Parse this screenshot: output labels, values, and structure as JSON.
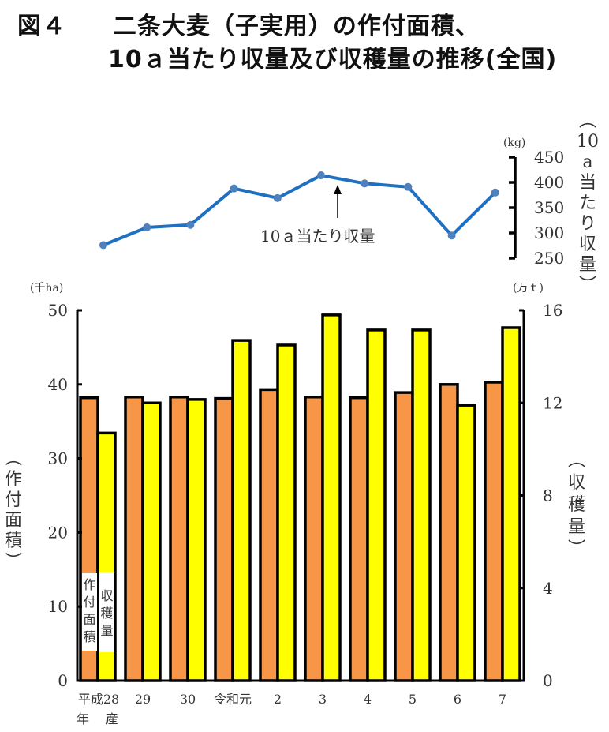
{
  "title": {
    "line1_fig": "図４",
    "line1_text": "二条大麦（子実用）の作付面積、",
    "line2_text": "10ａ当たり収量及び収穫量の推移(全国)"
  },
  "colors": {
    "area_bar": "#F79646",
    "harvest_bar": "#FFFF00",
    "yield_line": "#1F70C1",
    "yield_marker": "#4F81BD",
    "axis": "#000000"
  },
  "labels": {
    "left_unit": "(千ha)",
    "right_unit": "(万ｔ)",
    "yield_unit": "(kg)",
    "left_axis_title": [
      "︵",
      "作",
      "付",
      "面",
      "積",
      "︶"
    ],
    "right_axis_title": [
      "︵",
      "収",
      "穫",
      "量",
      "︶"
    ],
    "yield_axis_title": [
      "︵",
      "10",
      "a",
      "当",
      "た",
      "り",
      "収",
      "量",
      "︶"
    ],
    "legend_area": [
      "作",
      "付",
      "面",
      "積"
    ],
    "legend_harvest": [
      "収",
      "穫",
      "量"
    ],
    "yield_annotation": "10ａ当たり収量",
    "x_first_line2_a": "年",
    "x_first_line2_b": "産"
  },
  "chart_data": [
    {
      "type": "line",
      "title": "10ａ当たり収量",
      "ylabel": "10ａ当たり収量 (kg)",
      "ylim": [
        250,
        450
      ],
      "yticks": [
        250,
        300,
        350,
        400,
        450
      ],
      "categories": [
        "平成28年産",
        "29",
        "30",
        "令和元",
        "2",
        "3",
        "4",
        "5",
        "6",
        "7"
      ],
      "series": [
        {
          "name": "10ａ当たり収量",
          "values": [
            276,
            311,
            316,
            388,
            369,
            414,
            398,
            391,
            295,
            380
          ]
        }
      ]
    },
    {
      "type": "bar",
      "title": "作付面積・収穫量",
      "categories": [
        "平成28",
        "29",
        "30",
        "令和元",
        "2",
        "3",
        "4",
        "5",
        "6",
        "7"
      ],
      "category_labels": [
        "平成28",
        "29",
        "30",
        "令和元",
        "2",
        "3",
        "4",
        "5",
        "6",
        "7"
      ],
      "series": [
        {
          "name": "作付面積",
          "axis": "left",
          "unit": "千ha",
          "values": [
            38.2,
            38.3,
            38.3,
            38.1,
            39.3,
            38.3,
            38.2,
            38.9,
            40.0,
            40.3
          ]
        },
        {
          "name": "収穫量",
          "axis": "right",
          "unit": "万t",
          "values": [
            10.7,
            12.0,
            12.15,
            14.7,
            14.5,
            15.8,
            15.15,
            15.15,
            11.9,
            15.25
          ]
        }
      ],
      "ylabel_left": "作付面積 (千ha)",
      "ylabel_right": "収穫量 (万t)",
      "ylim_left": [
        0,
        50
      ],
      "yticks_left": [
        0,
        10,
        20,
        30,
        40,
        50
      ],
      "ylim_right": [
        0,
        16
      ],
      "yticks_right": [
        0,
        4,
        8,
        12,
        16
      ],
      "legend": "inside first bars (vertical labels)",
      "grid": false
    }
  ]
}
